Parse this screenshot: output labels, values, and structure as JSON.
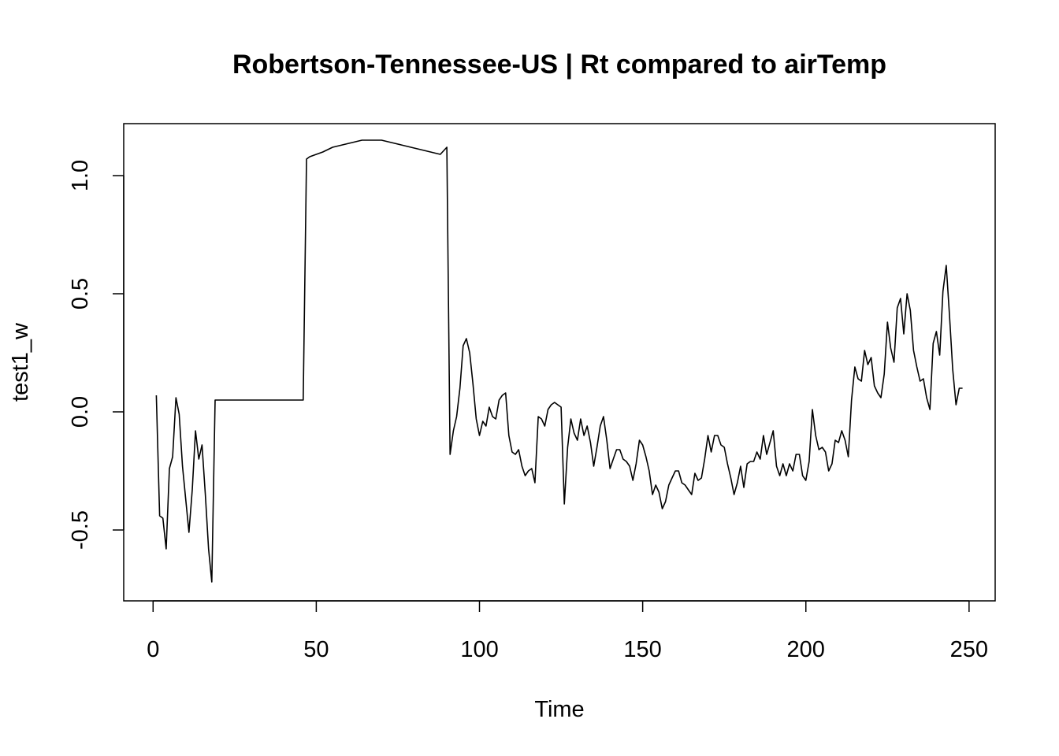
{
  "chart_data": {
    "type": "line",
    "title": "Robertson-Tennessee-US | Rt compared to airTemp",
    "xlabel": "Time",
    "ylabel": "test1_w",
    "xlim": [
      -9,
      258
    ],
    "ylim": [
      -0.8,
      1.22
    ],
    "x_ticks": [
      0,
      50,
      100,
      150,
      200,
      250
    ],
    "x_tick_labels": [
      "0",
      "50",
      "100",
      "150",
      "200",
      "250"
    ],
    "y_ticks": [
      -0.5,
      0.0,
      0.5,
      1.0
    ],
    "y_tick_labels": [
      "-0.5",
      "0.0",
      "0.5",
      "1.0"
    ],
    "grid": false,
    "legend": "none",
    "line_color": "#000000",
    "series": [
      {
        "x": [
          1,
          2,
          3,
          4,
          5,
          6,
          7,
          8,
          9,
          10,
          11,
          12,
          13,
          14,
          15,
          16,
          17,
          18,
          19,
          20,
          25,
          30,
          35,
          40,
          45,
          46,
          47,
          48,
          50,
          52,
          55,
          58,
          61,
          64,
          67,
          70,
          73,
          76,
          79,
          82,
          85,
          88,
          90,
          91,
          92,
          93,
          94,
          95,
          96,
          97,
          98,
          99,
          100,
          101,
          102,
          103,
          104,
          105,
          106,
          107,
          108,
          109,
          110,
          111,
          112,
          113,
          114,
          115,
          116,
          117,
          118,
          119,
          120,
          121,
          122,
          123,
          124,
          125,
          126,
          127,
          128,
          129,
          130,
          131,
          132,
          133,
          134,
          135,
          136,
          137,
          138,
          139,
          140,
          141,
          142,
          143,
          144,
          145,
          146,
          147,
          148,
          149,
          150,
          151,
          152,
          153,
          154,
          155,
          156,
          157,
          158,
          159,
          160,
          161,
          162,
          163,
          164,
          165,
          166,
          167,
          168,
          169,
          170,
          171,
          172,
          173,
          174,
          175,
          176,
          177,
          178,
          179,
          180,
          181,
          182,
          183,
          184,
          185,
          186,
          187,
          188,
          189,
          190,
          191,
          192,
          193,
          194,
          195,
          196,
          197,
          198,
          199,
          200,
          201,
          202,
          203,
          204,
          205,
          206,
          207,
          208,
          209,
          210,
          211,
          212,
          213,
          214,
          215,
          216,
          217,
          218,
          219,
          220,
          221,
          222,
          223,
          224,
          225,
          226,
          227,
          228,
          229,
          230,
          231,
          232,
          233,
          234,
          235,
          236,
          237,
          238,
          239,
          240,
          241,
          242,
          243,
          244,
          245,
          246,
          247,
          248
        ],
        "y": [
          0.07,
          -0.44,
          -0.45,
          -0.58,
          -0.24,
          -0.19,
          0.06,
          -0.01,
          -0.23,
          -0.37,
          -0.51,
          -0.33,
          -0.08,
          -0.2,
          -0.14,
          -0.35,
          -0.58,
          -0.72,
          0.05,
          0.05,
          0.05,
          0.05,
          0.05,
          0.05,
          0.05,
          0.05,
          1.07,
          1.08,
          1.09,
          1.1,
          1.12,
          1.13,
          1.14,
          1.15,
          1.15,
          1.15,
          1.14,
          1.13,
          1.12,
          1.11,
          1.1,
          1.09,
          1.12,
          -0.18,
          -0.08,
          -0.02,
          0.1,
          0.28,
          0.31,
          0.25,
          0.12,
          -0.03,
          -0.1,
          -0.04,
          -0.06,
          0.02,
          -0.02,
          -0.03,
          0.05,
          0.07,
          0.08,
          -0.1,
          -0.17,
          -0.18,
          -0.16,
          -0.23,
          -0.27,
          -0.25,
          -0.24,
          -0.3,
          -0.02,
          -0.03,
          -0.06,
          0.01,
          0.03,
          0.04,
          0.03,
          0.02,
          -0.39,
          -0.15,
          -0.03,
          -0.09,
          -0.12,
          -0.03,
          -0.1,
          -0.06,
          -0.13,
          -0.23,
          -0.15,
          -0.06,
          -0.02,
          -0.12,
          -0.24,
          -0.2,
          -0.16,
          -0.16,
          -0.2,
          -0.21,
          -0.23,
          -0.29,
          -0.22,
          -0.12,
          -0.14,
          -0.19,
          -0.25,
          -0.35,
          -0.31,
          -0.34,
          -0.41,
          -0.38,
          -0.31,
          -0.28,
          -0.25,
          -0.25,
          -0.3,
          -0.31,
          -0.33,
          -0.35,
          -0.26,
          -0.29,
          -0.28,
          -0.2,
          -0.1,
          -0.17,
          -0.1,
          -0.1,
          -0.14,
          -0.15,
          -0.22,
          -0.28,
          -0.35,
          -0.3,
          -0.23,
          -0.32,
          -0.22,
          -0.21,
          -0.21,
          -0.17,
          -0.2,
          -0.1,
          -0.18,
          -0.13,
          -0.08,
          -0.23,
          -0.27,
          -0.22,
          -0.27,
          -0.22,
          -0.25,
          -0.18,
          -0.18,
          -0.27,
          -0.29,
          -0.21,
          0.01,
          -0.1,
          -0.16,
          -0.15,
          -0.17,
          -0.25,
          -0.22,
          -0.12,
          -0.13,
          -0.08,
          -0.12,
          -0.19,
          0.05,
          0.19,
          0.14,
          0.13,
          0.26,
          0.2,
          0.23,
          0.11,
          0.08,
          0.06,
          0.16,
          0.38,
          0.27,
          0.21,
          0.44,
          0.48,
          0.33,
          0.5,
          0.43,
          0.26,
          0.19,
          0.13,
          0.14,
          0.06,
          0.01,
          0.29,
          0.34,
          0.24,
          0.51,
          0.62,
          0.41,
          0.18,
          0.03,
          0.1,
          0.1
        ]
      }
    ]
  }
}
